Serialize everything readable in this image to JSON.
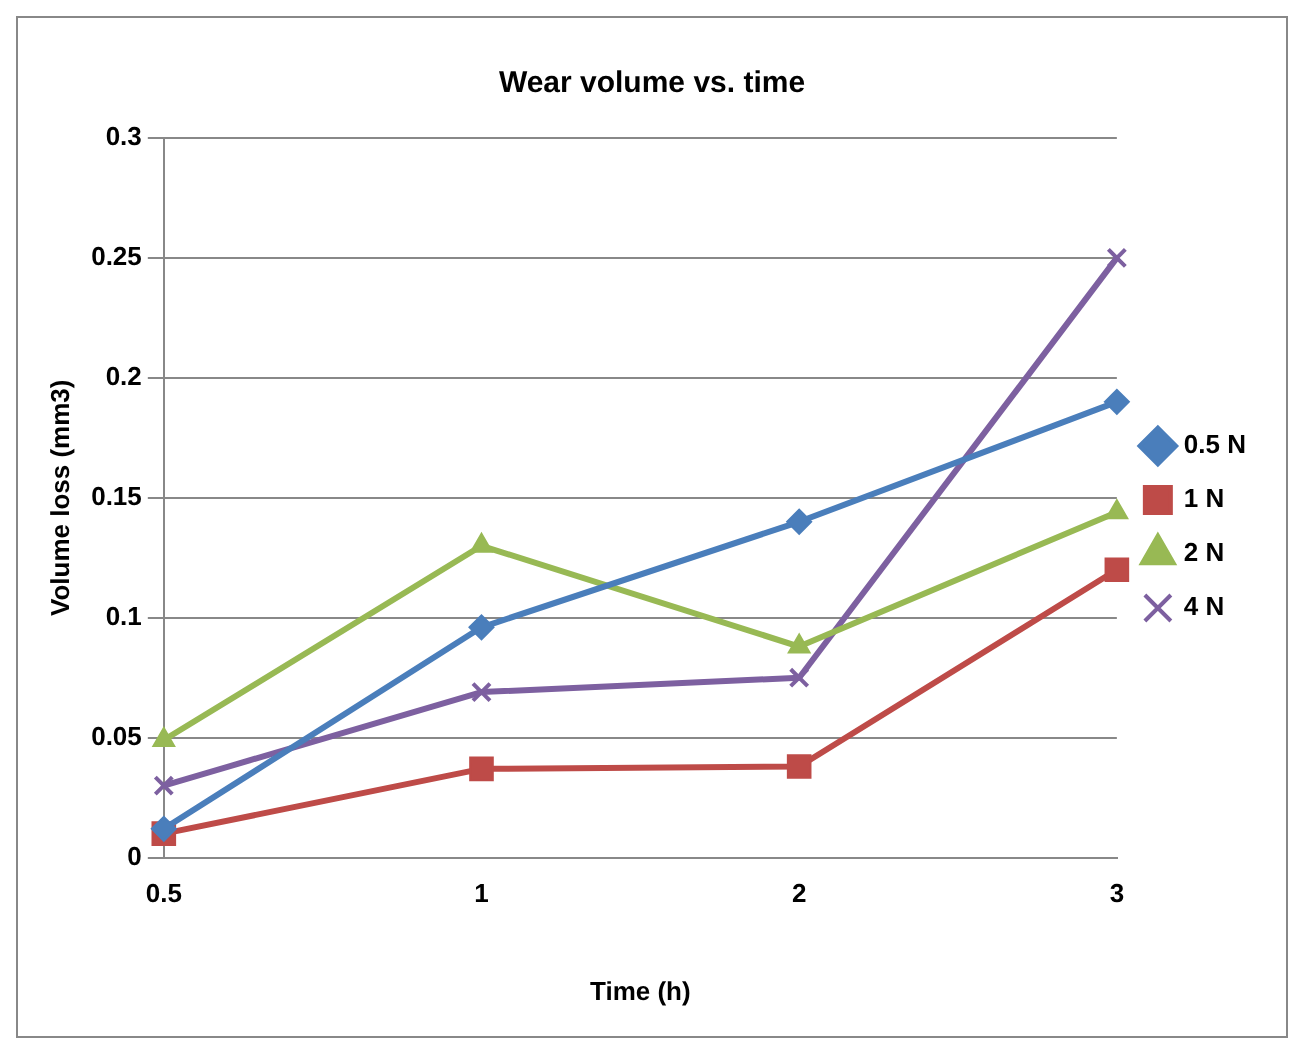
{
  "chart_data": {
    "type": "line",
    "title": "Wear volume vs. time",
    "xlabel": "Time (h)",
    "ylabel": "Volume loss (mm3)",
    "categories": [
      "0.5",
      "1",
      "2",
      "3"
    ],
    "series": [
      {
        "name": "0.5 N",
        "color": "#4a7ebb",
        "marker": "diamond",
        "values": [
          0.012,
          0.096,
          0.14,
          0.19
        ]
      },
      {
        "name": "1 N",
        "color": "#be4b48",
        "marker": "square",
        "values": [
          0.01,
          0.037,
          0.038,
          0.12
        ]
      },
      {
        "name": "2 N",
        "color": "#98b954",
        "marker": "triangle",
        "values": [
          0.049,
          0.13,
          0.088,
          0.144
        ]
      },
      {
        "name": "4 N",
        "color": "#7d60a0",
        "marker": "cross",
        "values": [
          0.03,
          0.069,
          0.075,
          0.25
        ]
      }
    ],
    "ylim": [
      0,
      0.3
    ],
    "yticks": [
      0,
      0.05,
      0.1,
      0.15,
      0.2,
      0.25,
      0.3
    ],
    "grid": "y",
    "legend": "right"
  }
}
